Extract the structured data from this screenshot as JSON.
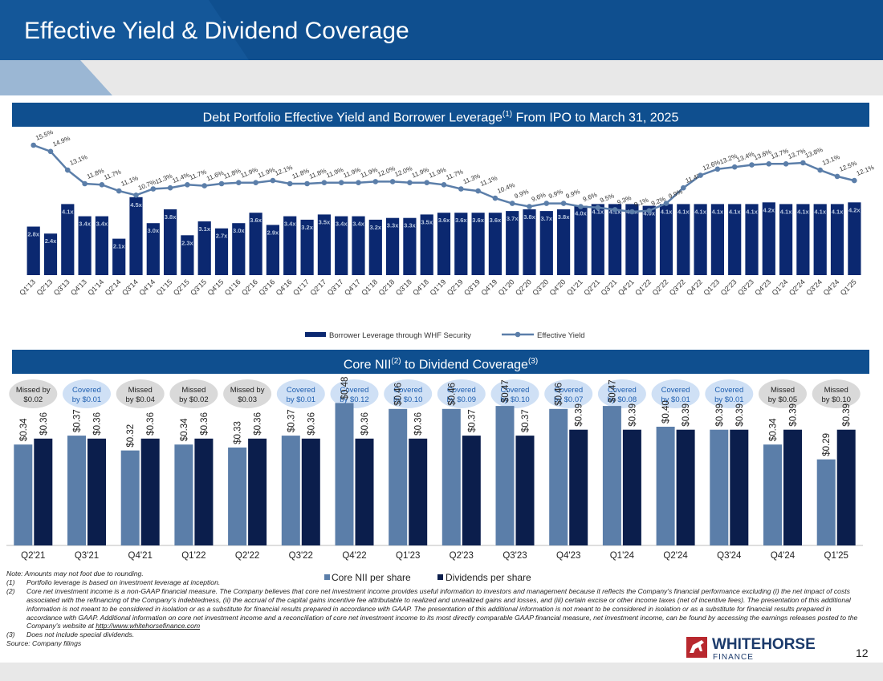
{
  "page": {
    "title": "Effective Yield & Dividend Coverage",
    "page_number": "12",
    "logo_text": "WHITEHORSE",
    "logo_subtext": "FINANCE"
  },
  "top_section": {
    "title_main": "Debt Portfolio Effective Yield and Borrower Leverage",
    "title_sup": "(1)",
    "title_tail": " From IPO to March 31, 2025"
  },
  "bottom_section": {
    "title_main": "Core NII",
    "title_sup": "(2)",
    "title_mid": " to Dividend Coverage",
    "title_sup2": "(3)"
  },
  "notes": {
    "note0": "Note: Amounts may not foot due to rounding.",
    "n1_num": "(1)",
    "n1_text": "Portfolio leverage is based on investment leverage at inception.",
    "n2_num": "(2)",
    "n2_text": "Core net investment income is a non-GAAP financial measure. The Company believes that core net investment income provides useful information to investors and management because it reflects the Company's financial performance excluding (i) the net impact of costs associated with the refinancing of the Company's indebtedness, (ii) the accrual of the capital gains incentive fee attributable to realized and unrealized gains and losses, and (iii) certain excise or other income taxes (net of incentive fees). The presentation of this additional information is not meant to be considered in isolation or as a substitute for financial results prepared in accordance with GAAP. The presentation of this additional information is not meant to be considered in isolation or as a substitute for financial results prepared in accordance with GAAP. Additional information on core net investment income and a reconciliation of core net investment income to its most directly comparable GAAP financial measure, net investment income, can be found by accessing the earnings releases posted to the Company's website at",
    "n2_link": "http://www.whitehorsefinance.com",
    "n3_num": "(3)",
    "n3_text": "Does not include special dividends.",
    "source": "Source: Company filings"
  },
  "chart_data": [
    {
      "type": "bar+line",
      "title": "Debt Portfolio Effective Yield and Borrower Leverage(1) From IPO to March 31, 2025",
      "categories": [
        "Q1'13",
        "Q2'13",
        "Q3'13",
        "Q4'13",
        "Q1'14",
        "Q2'14",
        "Q3'14",
        "Q4'14",
        "Q1'15",
        "Q2'15",
        "Q3'15",
        "Q4'15",
        "Q1'16",
        "Q2'16",
        "Q3'16",
        "Q4'16",
        "Q1'17",
        "Q2'17",
        "Q3'17",
        "Q4'17",
        "Q1'18",
        "Q2'18",
        "Q3'18",
        "Q4'18",
        "Q1'19",
        "Q2'19",
        "Q3'19",
        "Q4'19",
        "Q1'20",
        "Q2'20",
        "Q3'20",
        "Q4'20",
        "Q1'21",
        "Q2'21",
        "Q3'21",
        "Q4'21",
        "Q1'22",
        "Q2'22",
        "Q3'22",
        "Q4'22",
        "Q1'23",
        "Q2'23",
        "Q3'23",
        "Q4'23",
        "Q1'24",
        "Q2'24",
        "Q3'24",
        "Q4'24",
        "Q1'25"
      ],
      "series": [
        {
          "name": "Borrower Leverage through WHF Security",
          "kind": "bar",
          "color": "#0b2870",
          "values": [
            2.8,
            2.4,
            4.1,
            3.4,
            3.4,
            2.1,
            4.5,
            3.0,
            3.8,
            2.3,
            3.1,
            2.7,
            3.0,
            3.6,
            2.9,
            3.4,
            3.2,
            3.5,
            3.4,
            3.4,
            3.2,
            3.3,
            3.3,
            3.5,
            3.6,
            3.6,
            3.6,
            3.6,
            3.7,
            3.8,
            3.7,
            3.8,
            4.0,
            4.1,
            4.1,
            4.1,
            4.0,
            4.1,
            4.1,
            4.1,
            4.1,
            4.1,
            4.1,
            4.2,
            4.1,
            4.1,
            4.1,
            4.1,
            4.2
          ],
          "labels": [
            "2.8x",
            "2.4x",
            "4.1x",
            "3.4x",
            "3.4x",
            "2.1x",
            "4.5x",
            "3.0x",
            "3.8x",
            "2.3x",
            "3.1x",
            "2.7x",
            "3.0x",
            "3.6x",
            "2.9x",
            "3.4x",
            "3.2x",
            "3.5x",
            "3.4x",
            "3.4x",
            "3.2x",
            "3.3x",
            "3.3x",
            "3.5x",
            "3.6x",
            "3.6x",
            "3.6x",
            "3.6x",
            "3.7x",
            "3.8x",
            "3.7x",
            "3.8x",
            "4.0x",
            "4.1x",
            "4.1x",
            "4.1x",
            "4.0x",
            "4.1x",
            "4.1x",
            "4.1x",
            "4.1x",
            "4.1x",
            "4.1x",
            "4.2x",
            "4.1x",
            "4.1x",
            "4.1x",
            "4.1x",
            "4.2x"
          ]
        },
        {
          "name": "Effective Yield",
          "kind": "line",
          "color": "#5b7ea9",
          "values": [
            15.5,
            14.9,
            13.1,
            11.8,
            11.7,
            11.1,
            10.7,
            11.3,
            11.4,
            11.7,
            11.6,
            11.8,
            11.9,
            11.9,
            12.1,
            11.8,
            11.8,
            11.9,
            11.9,
            11.9,
            12.0,
            12.0,
            11.9,
            11.9,
            11.7,
            11.3,
            11.1,
            10.4,
            9.9,
            9.6,
            9.9,
            9.9,
            9.6,
            9.5,
            9.3,
            9.1,
            9.2,
            9.9,
            11.4,
            12.6,
            13.2,
            13.4,
            13.6,
            13.7,
            13.7,
            13.8,
            13.1,
            12.5,
            12.1
          ],
          "labels": [
            "15.5%",
            "14.9%",
            "13.1%",
            "11.8%",
            "11.7%",
            "11.1%",
            "10.7%",
            "11.3%",
            "11.4%",
            "11.7%",
            "11.6%",
            "11.8%",
            "11.9%",
            "11.9%",
            "12.1%",
            "11.8%",
            "11.8%",
            "11.9%",
            "11.9%",
            "11.9%",
            "12.0%",
            "12.0%",
            "11.9%",
            "11.9%",
            "11.7%",
            "11.3%",
            "11.1%",
            "10.4%",
            "9.9%",
            "9.6%",
            "9.9%",
            "9.9%",
            "9.6%",
            "9.5%",
            "9.3%",
            "9.1%",
            "9.2%",
            "9.9%",
            "11.4%",
            "12.6%",
            "13.2%",
            "13.4%",
            "13.6%",
            "13.7%",
            "13.7%",
            "13.8%",
            "13.1%",
            "12.5%",
            "12.1%"
          ]
        }
      ],
      "legend": [
        "Borrower Leverage through WHF Security",
        "Effective Yield"
      ]
    },
    {
      "type": "bar",
      "title": "Core NII(2) to Dividend Coverage(3)",
      "categories": [
        "Q2'21",
        "Q3'21",
        "Q4'21",
        "Q1'22",
        "Q2'22",
        "Q3'22",
        "Q4'22",
        "Q1'23",
        "Q2'23",
        "Q3'23",
        "Q4'23",
        "Q1'24",
        "Q2'24",
        "Q3'24",
        "Q4'24",
        "Q1'25"
      ],
      "series": [
        {
          "name": "Core NII per share",
          "color": "#5b7ea9",
          "values": [
            0.34,
            0.37,
            0.32,
            0.34,
            0.33,
            0.37,
            0.48,
            0.46,
            0.46,
            0.47,
            0.46,
            0.47,
            0.4,
            0.39,
            0.34,
            0.29
          ],
          "labels": [
            "$0.34",
            "$0.37",
            "$0.32",
            "$0.34",
            "$0.33",
            "$0.37",
            "$0.48",
            "$0.46",
            "$0.46",
            "$0.47",
            "$0.46",
            "$0.47",
            "$0.40",
            "$0.39",
            "$0.34",
            "$0.29"
          ]
        },
        {
          "name": "Dividends per share",
          "color": "#0b1e4c",
          "values": [
            0.36,
            0.36,
            0.36,
            0.36,
            0.36,
            0.36,
            0.36,
            0.36,
            0.37,
            0.37,
            0.39,
            0.39,
            0.39,
            0.39,
            0.39,
            0.39
          ],
          "labels": [
            "$0.36",
            "$0.36",
            "$0.36",
            "$0.36",
            "$0.36",
            "$0.36",
            "$0.36",
            "$0.36",
            "$0.37",
            "$0.37",
            "$0.39",
            "$0.39",
            "$0.39",
            "$0.39",
            "$0.39",
            "$0.39"
          ]
        }
      ],
      "coverage_badges": [
        {
          "line1": "Missed by",
          "line2": "$0.02",
          "status": "missed"
        },
        {
          "line1": "Covered",
          "line2": "by $0.01",
          "status": "covered"
        },
        {
          "line1": "Missed",
          "line2": "by $0.04",
          "status": "missed"
        },
        {
          "line1": "Missed",
          "line2": "by $0.02",
          "status": "missed"
        },
        {
          "line1": "Missed by",
          "line2": "$0.03",
          "status": "missed"
        },
        {
          "line1": "Covered",
          "line2": "by $0.01",
          "status": "covered"
        },
        {
          "line1": "Covered",
          "line2": "by $0.12",
          "status": "covered"
        },
        {
          "line1": "Covered",
          "line2": "by $0.10",
          "status": "covered"
        },
        {
          "line1": "Covered",
          "line2": "by $0.09",
          "status": "covered"
        },
        {
          "line1": "Covered",
          "line2": "by $0.10",
          "status": "covered"
        },
        {
          "line1": "Covered",
          "line2": "by $0.07",
          "status": "covered"
        },
        {
          "line1": "Covered",
          "line2": "by $0.08",
          "status": "covered"
        },
        {
          "line1": "Covered",
          "line2": "by $0.01",
          "status": "covered"
        },
        {
          "line1": "Covered",
          "line2": "by $0.01",
          "status": "covered"
        },
        {
          "line1": "Missed",
          "line2": "by $0.05",
          "status": "missed"
        },
        {
          "line1": "Missed",
          "line2": "by $0.10",
          "status": "missed"
        }
      ],
      "legend": [
        "Core NII per share",
        "Dividends per share"
      ],
      "ylim": [
        0,
        0.55
      ]
    }
  ],
  "colors": {
    "header": "#0f4f8f",
    "bar_dark": "#0b2870",
    "line": "#5b7ea9",
    "nii": "#5b7ea9",
    "div": "#0b1e4c",
    "badge_missed": "#d9d9d9",
    "badge_covered": "#cfe0f5"
  }
}
